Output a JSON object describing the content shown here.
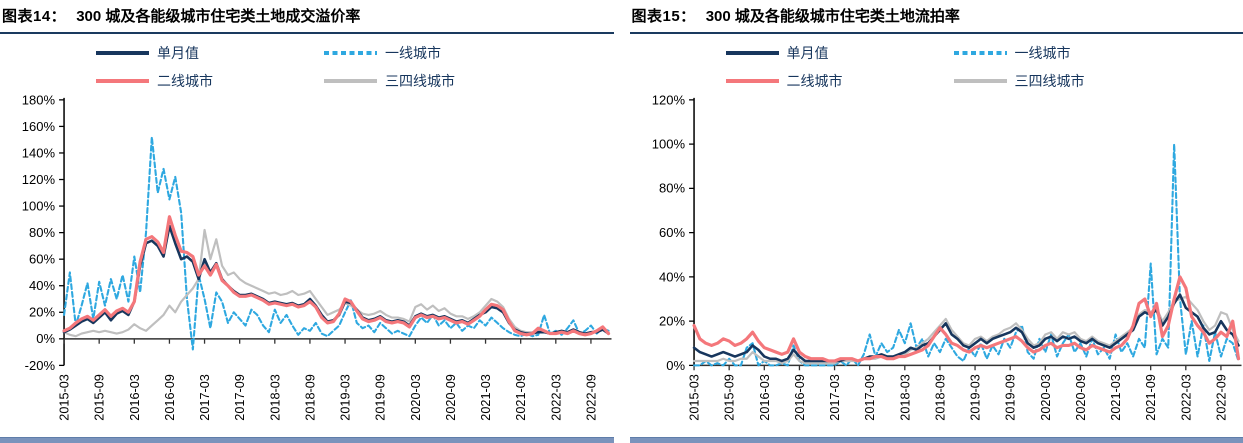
{
  "page": {
    "background": "#ffffff",
    "title_rule_color": "#1a3a5f",
    "footer_bar_color": "#7a93bc",
    "legend_text_color": "#17365d"
  },
  "chart_data": [
    {
      "id": "fig14",
      "type": "line",
      "title_prefix": "图表14：",
      "title": "300 城及各能级城市住宅类土地成交溢价率",
      "y_axis": {
        "min": -20,
        "max": 180,
        "step": 20,
        "suffix": "%"
      },
      "x_monthly_start": "2015-03",
      "x_tick_every": 6,
      "x_tick_labels": [
        "2015-03",
        "2015-09",
        "2016-03",
        "2016-09",
        "2017-03",
        "2017-09",
        "2018-03",
        "2018-09",
        "2019-03",
        "2019-09",
        "2020-03",
        "2020-09",
        "2021-03",
        "2021-09",
        "2022-03",
        "2022-09"
      ],
      "draw_order": [
        1,
        3,
        0,
        2
      ],
      "series": [
        {
          "name": "单月值",
          "color": "#17365d",
          "width": 2.6,
          "dash": null,
          "values": [
            5,
            7,
            10,
            13,
            15,
            12,
            16,
            20,
            14,
            19,
            21,
            18,
            28,
            55,
            72,
            74,
            70,
            62,
            85,
            72,
            60,
            62,
            58,
            45,
            60,
            50,
            57,
            45,
            40,
            36,
            33,
            33,
            34,
            32,
            30,
            27,
            28,
            27,
            26,
            27,
            25,
            26,
            30,
            25,
            18,
            13,
            14,
            18,
            28,
            27,
            22,
            16,
            14,
            15,
            17,
            14,
            13,
            14,
            13,
            10,
            17,
            19,
            17,
            18,
            16,
            17,
            15,
            13,
            14,
            12,
            15,
            18,
            20,
            24,
            23,
            20,
            12,
            7,
            5,
            4,
            4,
            5,
            5,
            4,
            5,
            6,
            5,
            7,
            5,
            4,
            5,
            5,
            7,
            4
          ]
        },
        {
          "name": "一线城市",
          "color": "#2ea8e0",
          "width": 2.1,
          "dash": "5,3",
          "values": [
            18,
            50,
            10,
            25,
            42,
            15,
            43,
            25,
            45,
            30,
            48,
            28,
            62,
            35,
            80,
            152,
            110,
            128,
            105,
            122,
            95,
            30,
            -8,
            48,
            30,
            8,
            35,
            28,
            12,
            20,
            15,
            10,
            22,
            18,
            10,
            5,
            22,
            12,
            18,
            10,
            3,
            8,
            6,
            12,
            4,
            2,
            6,
            10,
            20,
            29,
            12,
            8,
            10,
            5,
            12,
            8,
            4,
            6,
            4,
            2,
            10,
            16,
            12,
            18,
            10,
            14,
            8,
            12,
            6,
            10,
            8,
            14,
            10,
            16,
            12,
            8,
            5,
            3,
            2,
            4,
            2,
            3,
            18,
            4,
            6,
            3,
            8,
            14,
            4,
            6,
            10,
            4,
            8,
            6
          ]
        },
        {
          "name": "二线城市",
          "color": "#f4777b",
          "width": 3.2,
          "dash": null,
          "values": [
            6,
            8,
            12,
            15,
            17,
            14,
            18,
            22,
            17,
            21,
            23,
            20,
            28,
            58,
            75,
            77,
            73,
            65,
            92,
            78,
            66,
            65,
            62,
            48,
            55,
            48,
            56,
            44,
            40,
            35,
            32,
            32,
            33,
            31,
            29,
            26,
            27,
            26,
            25,
            26,
            24,
            25,
            28,
            24,
            16,
            12,
            13,
            19,
            30,
            28,
            21,
            15,
            13,
            14,
            16,
            13,
            12,
            13,
            12,
            9,
            16,
            18,
            16,
            17,
            15,
            16,
            14,
            12,
            13,
            11,
            14,
            17,
            22,
            26,
            25,
            22,
            13,
            6,
            4,
            3,
            4,
            8,
            6,
            4,
            4,
            5,
            4,
            6,
            4,
            3,
            4,
            6,
            9,
            4
          ]
        },
        {
          "name": "三四线城市",
          "color": "#bfbfbf",
          "width": 2.2,
          "dash": null,
          "values": [
            5,
            3,
            2,
            4,
            5,
            6,
            5,
            6,
            5,
            4,
            5,
            7,
            11,
            8,
            6,
            10,
            14,
            18,
            25,
            20,
            28,
            33,
            38,
            45,
            82,
            60,
            75,
            55,
            48,
            50,
            45,
            42,
            40,
            38,
            36,
            34,
            35,
            33,
            34,
            36,
            33,
            34,
            36,
            30,
            24,
            18,
            20,
            22,
            27,
            25,
            22,
            19,
            18,
            19,
            21,
            18,
            16,
            16,
            15,
            13,
            24,
            26,
            22,
            25,
            21,
            23,
            19,
            17,
            17,
            15,
            17,
            20,
            25,
            30,
            28,
            24,
            15,
            9,
            6,
            5,
            5,
            6,
            5,
            4,
            5,
            5,
            4,
            6,
            5,
            4,
            5,
            6,
            8,
            5
          ]
        }
      ]
    },
    {
      "id": "fig15",
      "type": "line",
      "title_prefix": "图表15：",
      "title": "300 城及各能级城市住宅类土地流拍率",
      "y_axis": {
        "min": 0,
        "max": 120,
        "step": 20,
        "suffix": "%"
      },
      "x_monthly_start": "2015-03",
      "x_tick_every": 6,
      "x_tick_labels": [
        "2015-03",
        "2015-09",
        "2016-03",
        "2016-09",
        "2017-03",
        "2017-09",
        "2018-03",
        "2018-09",
        "2019-03",
        "2019-09",
        "2020-03",
        "2020-09",
        "2021-03",
        "2021-09",
        "2022-03",
        "2022-09"
      ],
      "draw_order": [
        1,
        3,
        0,
        2
      ],
      "series": [
        {
          "name": "单月值",
          "color": "#17365d",
          "width": 2.6,
          "dash": null,
          "values": [
            8,
            6,
            5,
            4,
            5,
            6,
            5,
            4,
            5,
            6,
            9,
            7,
            4,
            3,
            3,
            2,
            3,
            7,
            4,
            2,
            2,
            2,
            2,
            2,
            2,
            2,
            3,
            3,
            2,
            3,
            4,
            4,
            5,
            4,
            4,
            5,
            6,
            8,
            7,
            9,
            10,
            13,
            16,
            19,
            14,
            12,
            9,
            8,
            10,
            12,
            10,
            12,
            13,
            14,
            15,
            17,
            15,
            10,
            8,
            9,
            12,
            13,
            11,
            13,
            12,
            13,
            11,
            10,
            12,
            10,
            9,
            8,
            10,
            12,
            14,
            16,
            22,
            24,
            23,
            25,
            18,
            22,
            28,
            32,
            26,
            24,
            22,
            17,
            14,
            15,
            20,
            16,
            14,
            9
          ]
        },
        {
          "name": "一线城市",
          "color": "#2ea8e0",
          "width": 2.1,
          "dash": "5,3",
          "values": [
            0,
            0,
            2,
            0,
            1,
            0,
            3,
            0,
            0,
            8,
            10,
            0,
            2,
            0,
            0,
            1,
            0,
            9,
            2,
            0,
            0,
            0,
            0,
            0,
            0,
            2,
            0,
            3,
            0,
            5,
            14,
            4,
            10,
            6,
            8,
            16,
            10,
            19,
            8,
            12,
            4,
            10,
            6,
            12,
            8,
            4,
            2,
            8,
            4,
            10,
            3,
            9,
            5,
            12,
            8,
            15,
            18,
            6,
            3,
            12,
            6,
            14,
            4,
            10,
            14,
            6,
            10,
            4,
            12,
            5,
            8,
            3,
            14,
            6,
            10,
            4,
            12,
            8,
            46,
            5,
            12,
            8,
            100,
            30,
            5,
            20,
            4,
            18,
            2,
            15,
            4,
            12,
            10,
            2
          ]
        },
        {
          "name": "二线城市",
          "color": "#f4777b",
          "width": 3.2,
          "dash": null,
          "values": [
            18,
            12,
            10,
            9,
            10,
            12,
            11,
            9,
            10,
            12,
            15,
            11,
            8,
            7,
            6,
            5,
            6,
            12,
            6,
            4,
            3,
            3,
            3,
            2,
            2,
            3,
            3,
            3,
            2,
            3,
            3,
            4,
            4,
            3,
            3,
            4,
            4,
            5,
            6,
            7,
            9,
            13,
            17,
            14,
            10,
            9,
            7,
            6,
            8,
            9,
            8,
            9,
            10,
            11,
            12,
            13,
            11,
            8,
            6,
            7,
            9,
            10,
            8,
            9,
            9,
            10,
            8,
            7,
            9,
            8,
            7,
            6,
            8,
            9,
            12,
            18,
            28,
            30,
            22,
            28,
            13,
            18,
            30,
            40,
            35,
            22,
            18,
            15,
            10,
            12,
            15,
            13,
            20,
            3
          ]
        },
        {
          "name": "三四线城市",
          "color": "#bfbfbf",
          "width": 2.2,
          "dash": null,
          "values": [
            2,
            2,
            2,
            2,
            2,
            3,
            2,
            2,
            3,
            3,
            6,
            4,
            2,
            2,
            2,
            1,
            2,
            5,
            2,
            1,
            1,
            1,
            1,
            1,
            1,
            2,
            2,
            2,
            2,
            3,
            3,
            3,
            4,
            3,
            3,
            4,
            5,
            7,
            8,
            10,
            12,
            15,
            18,
            21,
            16,
            13,
            10,
            9,
            12,
            13,
            11,
            13,
            14,
            16,
            17,
            19,
            16,
            12,
            9,
            10,
            14,
            15,
            12,
            15,
            14,
            15,
            12,
            11,
            13,
            11,
            10,
            9,
            11,
            13,
            15,
            17,
            23,
            25,
            24,
            26,
            20,
            24,
            29,
            30,
            31,
            28,
            25,
            20,
            16,
            18,
            24,
            23,
            16,
            11
          ]
        }
      ]
    }
  ]
}
